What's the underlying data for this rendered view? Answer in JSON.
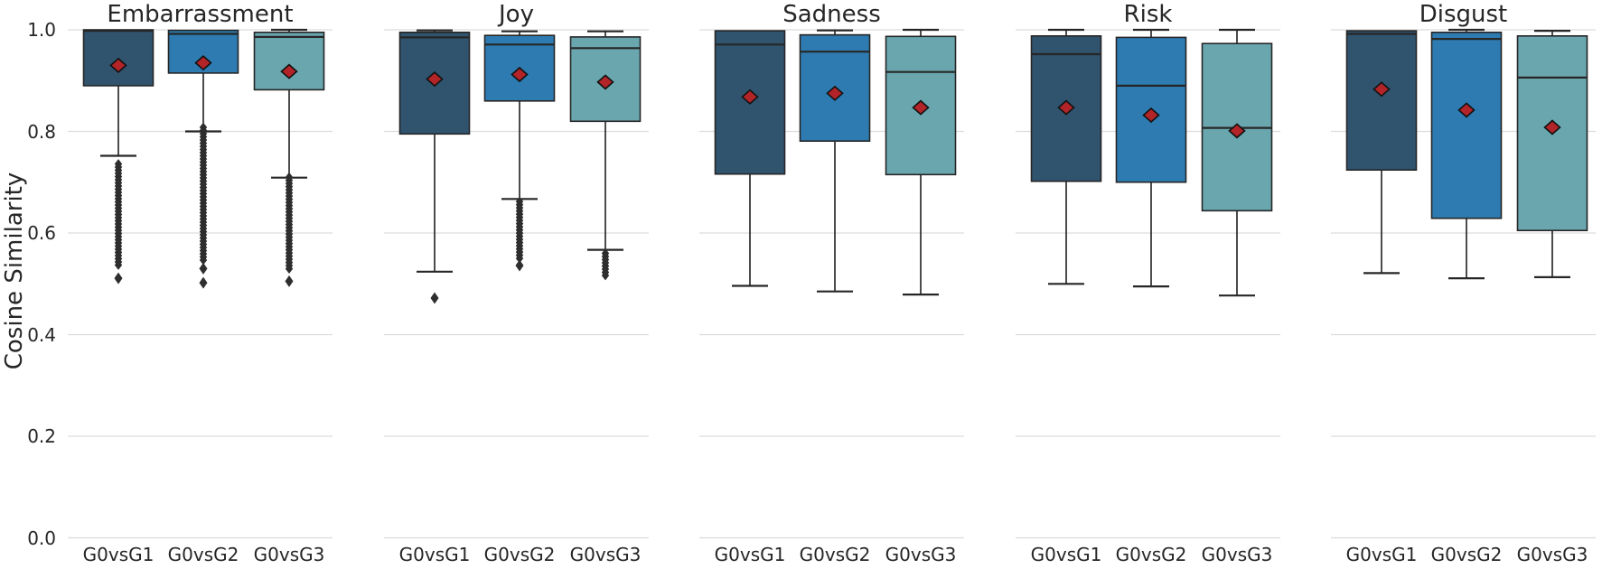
{
  "chart_data": {
    "type": "box",
    "title": "",
    "ylabel": "Cosine Similarity",
    "categories": [
      "G0vsG1",
      "G0vsG2",
      "G0vsG3"
    ],
    "yticks": [
      0.0,
      0.2,
      0.4,
      0.6,
      0.8,
      1.0
    ],
    "ylim": [
      0.0,
      1.02
    ],
    "grid": "horizontal",
    "legend": false,
    "mean_marker": "red-diamond",
    "outlier_marker": "black-diamond",
    "panels": [
      {
        "title": "Embarrassment",
        "boxes": [
          {
            "group": "G0vsG1",
            "whisker_low": 0.752,
            "q1": 0.89,
            "median": 0.998,
            "q3": 1.0,
            "whisker_high": 1.0,
            "mean": 0.93,
            "outlier_runs": [
              [
                0.736,
                0.534
              ]
            ],
            "outlier_points": [
              0.511
            ]
          },
          {
            "group": "G0vsG2",
            "whisker_low": 0.8,
            "q1": 0.915,
            "median": 0.992,
            "q3": 0.999,
            "whisker_high": 1.0,
            "mean": 0.935,
            "outlier_runs": [
              [
                0.808,
                0.543
              ]
            ],
            "outlier_points": [
              0.53,
              0.502
            ]
          },
          {
            "group": "G0vsG3",
            "whisker_low": 0.709,
            "q1": 0.882,
            "median": 0.986,
            "q3": 0.995,
            "whisker_high": 1.0,
            "mean": 0.918,
            "outlier_runs": [
              [
                0.71,
                0.525
              ]
            ],
            "outlier_points": [
              0.505
            ]
          }
        ]
      },
      {
        "title": "Joy",
        "boxes": [
          {
            "group": "G0vsG1",
            "whisker_low": 0.524,
            "q1": 0.795,
            "median": 0.985,
            "q3": 0.995,
            "whisker_high": 0.999,
            "mean": 0.903,
            "outlier_runs": [],
            "outlier_points": [
              0.472
            ]
          },
          {
            "group": "G0vsG2",
            "whisker_low": 0.667,
            "q1": 0.86,
            "median": 0.971,
            "q3": 0.989,
            "whisker_high": 0.997,
            "mean": 0.912,
            "outlier_runs": [
              [
                0.662,
                0.545
              ]
            ],
            "outlier_points": [
              0.536
            ]
          },
          {
            "group": "G0vsG3",
            "whisker_low": 0.567,
            "q1": 0.82,
            "median": 0.964,
            "q3": 0.986,
            "whisker_high": 0.997,
            "mean": 0.897,
            "outlier_runs": [
              [
                0.56,
                0.516
              ]
            ],
            "outlier_points": []
          }
        ]
      },
      {
        "title": "Sadness",
        "boxes": [
          {
            "group": "G0vsG1",
            "whisker_low": 0.496,
            "q1": 0.716,
            "median": 0.971,
            "q3": 0.998,
            "whisker_high": 0.998,
            "mean": 0.868,
            "outlier_runs": [],
            "outlier_points": []
          },
          {
            "group": "G0vsG2",
            "whisker_low": 0.485,
            "q1": 0.781,
            "median": 0.957,
            "q3": 0.99,
            "whisker_high": 0.999,
            "mean": 0.875,
            "outlier_runs": [],
            "outlier_points": []
          },
          {
            "group": "G0vsG3",
            "whisker_low": 0.479,
            "q1": 0.715,
            "median": 0.917,
            "q3": 0.987,
            "whisker_high": 1.0,
            "mean": 0.847,
            "outlier_runs": [],
            "outlier_points": []
          }
        ]
      },
      {
        "title": "Risk",
        "boxes": [
          {
            "group": "G0vsG1",
            "whisker_low": 0.5,
            "q1": 0.702,
            "median": 0.952,
            "q3": 0.988,
            "whisker_high": 1.0,
            "mean": 0.847,
            "outlier_runs": [],
            "outlier_points": []
          },
          {
            "group": "G0vsG2",
            "whisker_low": 0.495,
            "q1": 0.7,
            "median": 0.89,
            "q3": 0.985,
            "whisker_high": 1.0,
            "mean": 0.832,
            "outlier_runs": [],
            "outlier_points": []
          },
          {
            "group": "G0vsG3",
            "whisker_low": 0.477,
            "q1": 0.644,
            "median": 0.807,
            "q3": 0.973,
            "whisker_high": 1.0,
            "mean": 0.801,
            "outlier_runs": [],
            "outlier_points": []
          }
        ]
      },
      {
        "title": "Disgust",
        "boxes": [
          {
            "group": "G0vsG1",
            "whisker_low": 0.521,
            "q1": 0.724,
            "median": 0.992,
            "q3": 0.998,
            "whisker_high": 0.998,
            "mean": 0.883,
            "outlier_runs": [],
            "outlier_points": []
          },
          {
            "group": "G0vsG2",
            "whisker_low": 0.511,
            "q1": 0.629,
            "median": 0.982,
            "q3": 0.995,
            "whisker_high": 1.0,
            "mean": 0.842,
            "outlier_runs": [],
            "outlier_points": []
          },
          {
            "group": "G0vsG3",
            "whisker_low": 0.513,
            "q1": 0.605,
            "median": 0.906,
            "q3": 0.988,
            "whisker_high": 0.998,
            "mean": 0.808,
            "outlier_runs": [],
            "outlier_points": []
          }
        ]
      }
    ]
  },
  "style": {
    "palette": [
      "#30536e",
      "#2e7bb1",
      "#6aa6ae"
    ],
    "box_edge_color": "#262626",
    "whisker_color": "#1f1f1f",
    "outlier_color": "#2e2e2e",
    "mean_fill": "#b22428",
    "mean_edge": "#111111",
    "grid_color": "#dcdcdc",
    "text_color": "#262626",
    "background": "#ffffff"
  }
}
